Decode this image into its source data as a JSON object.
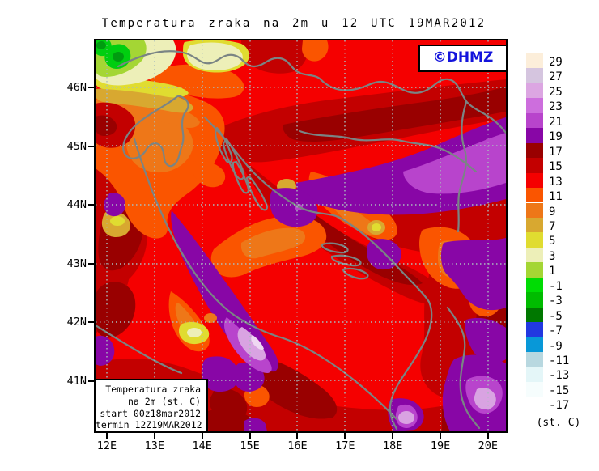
{
  "title": "Temperatura zraka na 2m u 12 UTC 19MAR2012",
  "logo": {
    "text": "©DHMZ",
    "color": "#1414DC"
  },
  "info_box": {
    "lines": [
      "Temperatura zraka",
      "na 2m (st. C)",
      "start 00z18mar2012",
      "termin 12Z19MAR2012"
    ]
  },
  "axes": {
    "lat": [
      "46N",
      "45N",
      "44N",
      "43N",
      "42N",
      "41N"
    ],
    "lon": [
      "12E",
      "13E",
      "14E",
      "15E",
      "16E",
      "17E",
      "18E",
      "19E",
      "20E"
    ]
  },
  "legend": {
    "unit": "(st. C)",
    "entries": [
      {
        "label": "29",
        "color": "#FCEEDA"
      },
      {
        "label": "27",
        "color": "#D5C5DF"
      },
      {
        "label": "25",
        "color": "#DCA6E2"
      },
      {
        "label": "23",
        "color": "#CD6EDD"
      },
      {
        "label": "21",
        "color": "#B844CC"
      },
      {
        "label": "19",
        "color": "#8806A6"
      },
      {
        "label": "17",
        "color": "#990000"
      },
      {
        "label": "15",
        "color": "#C30000"
      },
      {
        "label": "13",
        "color": "#F50000"
      },
      {
        "label": "11",
        "color": "#FA5500"
      },
      {
        "label": "9",
        "color": "#EE7718"
      },
      {
        "label": "7",
        "color": "#D8A830"
      },
      {
        "label": "5",
        "color": "#E0DC30"
      },
      {
        "label": "3",
        "color": "#EDEFB8"
      },
      {
        "label": "1",
        "color": "#A4D634"
      },
      {
        "label": "-1",
        "color": "#00DC04"
      },
      {
        "label": "-3",
        "color": "#00BC00"
      },
      {
        "label": "-5",
        "color": "#007800"
      },
      {
        "label": "-7",
        "color": "#2238E0"
      },
      {
        "label": "-9",
        "color": "#0898D8"
      },
      {
        "label": "-11",
        "color": "#B8D8E0"
      },
      {
        "label": "-13",
        "color": "#E4F6F8"
      },
      {
        "label": "-15",
        "color": "#F6FDFD"
      },
      {
        "label": "-17",
        "color": "#FFFFFF"
      }
    ]
  },
  "chart_data": {
    "type": "heatmap",
    "title": "Temperatura zraka na 2m u 12 UTC 19MAR2012",
    "units": "st. C",
    "levels": [
      29,
      27,
      25,
      23,
      21,
      19,
      17,
      15,
      13,
      11,
      9,
      7,
      5,
      3,
      1,
      -1,
      -3,
      -5,
      -7,
      -9,
      -11,
      -13,
      -15,
      -17
    ],
    "x_ticks": [
      "12E",
      "13E",
      "14E",
      "15E",
      "16E",
      "17E",
      "18E",
      "19E",
      "20E"
    ],
    "y_ticks": [
      "46N",
      "45N",
      "44N",
      "43N",
      "42N",
      "41N"
    ],
    "legend_position": "right",
    "grid": "dotted",
    "notes": "Filled-contour 2m air temperature over Croatia/Adriatic; dominant 13-19 C (reds), 19-25 C (purples) in E and along coasts, 5-11 C (yellow/orange) NW highlands, down to -1/-5 C (greens) in Alpine NW corner"
  }
}
